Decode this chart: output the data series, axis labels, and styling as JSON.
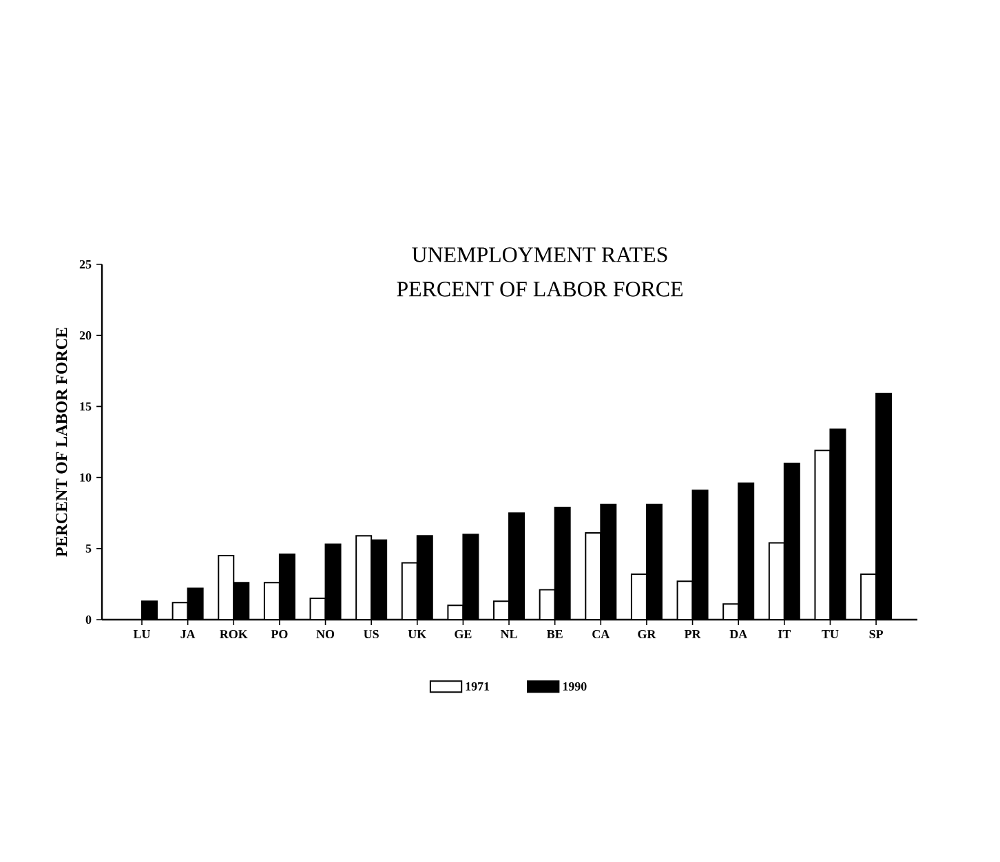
{
  "chart_data": {
    "type": "bar",
    "title": "UNEMPLOYMENT RATES",
    "subtitle": "PERCENT OF LABOR FORCE",
    "ylabel": "PERCENT OF LABOR FORCE",
    "categories": [
      "LU",
      "JA",
      "ROK",
      "PO",
      "NO",
      "US",
      "UK",
      "GE",
      "NL",
      "BE",
      "CA",
      "GR",
      "PR",
      "DA",
      "IT",
      "TU",
      "SP"
    ],
    "series": [
      {
        "name": "1971",
        "color": "#ffffff",
        "values": [
          null,
          1.2,
          4.5,
          2.6,
          1.5,
          5.9,
          4.0,
          1.0,
          1.3,
          2.1,
          6.1,
          3.2,
          2.7,
          1.1,
          5.4,
          11.9,
          3.2
        ]
      },
      {
        "name": "1990",
        "color": "#000000",
        "values": [
          1.3,
          2.2,
          2.6,
          4.6,
          5.3,
          5.6,
          5.9,
          6.0,
          7.5,
          7.9,
          8.1,
          8.1,
          9.1,
          9.6,
          11.0,
          13.4,
          15.9
        ]
      }
    ],
    "ylim": [
      0,
      25
    ],
    "yticks": [
      0,
      5,
      10,
      15,
      20,
      25
    ],
    "legend": "bottom"
  }
}
